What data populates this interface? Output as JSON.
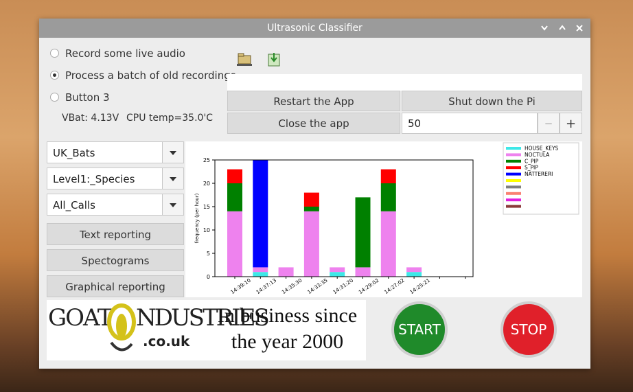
{
  "window": {
    "title": "Ultrasonic Classifier"
  },
  "mode_options": {
    "options": [
      "Record some live audio",
      "Process a batch of old recordings",
      "Button 3"
    ],
    "selected": 1
  },
  "status": {
    "battery": "VBat: 4.13V",
    "cpu": "CPU temp=35.0'C"
  },
  "buttons": {
    "restart": "Restart the App",
    "shutdown": "Shut down the Pi",
    "close": "Close the app",
    "text_reporting": "Text reporting",
    "spectograms": "Spectograms",
    "graphical_reporting": "Graphical reporting",
    "start": "START",
    "stop": "STOP"
  },
  "spinbox": {
    "value": 50,
    "minus": "−",
    "plus": "+"
  },
  "dropdowns": [
    "UK_Bats",
    "Level1:_Species",
    "All_Calls"
  ],
  "banner": {
    "logo_left": "GOAT",
    "logo_right": "NDUSTRIES",
    "logo_domain": ".co.uk",
    "slogan": [
      "In business since",
      "the year 2000"
    ]
  },
  "chart_data": {
    "type": "bar",
    "stacked": true,
    "ylabel": "frequency (per hour)",
    "categories": [
      "14:39:10",
      "14:37:13",
      "14:35:30",
      "14:33:35",
      "14:31:20",
      "14:29:02",
      "14:27:02",
      "14:25:21",
      null,
      null
    ],
    "series": [
      {
        "name": "HOUSE_KEYS",
        "color": "#3ee8e8",
        "values": [
          0,
          1,
          0,
          0,
          1,
          0,
          0,
          1,
          0,
          0
        ]
      },
      {
        "name": "NOCTULA",
        "color": "#ee82ee",
        "values": [
          14,
          1,
          2,
          14,
          1,
          2,
          14,
          1,
          0,
          0
        ]
      },
      {
        "name": "C_PIP",
        "color": "#008000",
        "values": [
          6,
          0,
          0,
          1,
          0,
          15,
          6,
          0,
          0,
          0
        ]
      },
      {
        "name": "S_PIP",
        "color": "#ff0000",
        "values": [
          3,
          0,
          0,
          3,
          0,
          0,
          3,
          0,
          0,
          0
        ]
      },
      {
        "name": "NATTERERI",
        "color": "#0000ff",
        "values": [
          0,
          24,
          0,
          0,
          0,
          0,
          0,
          0,
          0,
          0
        ]
      }
    ],
    "legend_unnamed_colors": [
      "#ffff00",
      "#808080",
      "#fa8072",
      "#e020e0",
      "#8b3a3a"
    ],
    "ylim": [
      0,
      25
    ],
    "yticks": [
      0,
      5,
      10,
      15,
      20,
      25
    ],
    "legend": "upper right"
  }
}
